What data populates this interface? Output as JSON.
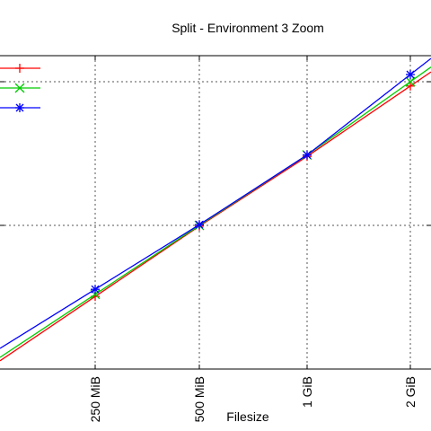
{
  "chart_data": {
    "type": "line",
    "title": "Split - Environment 3 Zoom",
    "xlabel": "Filesize",
    "ylabel": "",
    "categories": [
      "250 MiB",
      "500 MiB",
      "1 GiB",
      "2 GiB"
    ],
    "grid": true,
    "legend_position": "top-left",
    "markers": [
      "plus",
      "cross",
      "asterisk"
    ],
    "series": [
      {
        "color": "#ff0000",
        "marker": "plus",
        "values": [
          0.505,
          0.995,
          1.48,
          1.97
        ]
      },
      {
        "color": "#00cc00",
        "marker": "cross",
        "values": [
          0.52,
          1.0,
          1.49,
          2.0
        ]
      },
      {
        "color": "#0000ff",
        "marker": "asterisk",
        "values": [
          0.555,
          1.005,
          1.49,
          2.05
        ]
      }
    ]
  }
}
